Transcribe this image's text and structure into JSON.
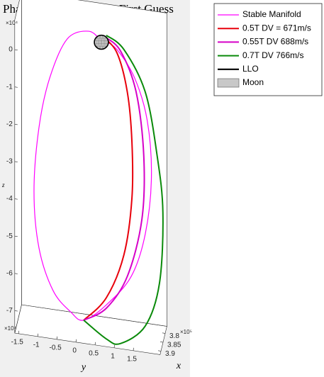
{
  "chart_data": {
    "type": "line3d",
    "title": "Phasing with Hohmann First Guess",
    "xlabel": "x",
    "ylabel": "y",
    "zlabel": "z",
    "x_exponent": "×10⁵",
    "y_exponent": "×10⁴",
    "z_exponent": "×10⁴",
    "xlim": [
      376000,
      392000
    ],
    "ylim": [
      -16000,
      22000
    ],
    "zlim": [
      -76000,
      8000
    ],
    "xticks": [
      {
        "value": 380000,
        "label": "3.8"
      },
      {
        "value": 385000,
        "label": "3.85"
      },
      {
        "value": 390000,
        "label": "3.9"
      }
    ],
    "yticks": [
      {
        "value": -15000,
        "label": "-1.5"
      },
      {
        "value": -10000,
        "label": "-1"
      },
      {
        "value": -5000,
        "label": "-0.5"
      },
      0,
      {
        "value": 5000,
        "label": "0.5"
      },
      {
        "value": 10000,
        "label": "1"
      },
      {
        "value": 15000,
        "label": "1.5"
      }
    ],
    "zticks": [
      {
        "value": -70000,
        "label": "-7"
      },
      {
        "value": -60000,
        "label": "-6"
      },
      {
        "value": -50000,
        "label": "-5"
      },
      {
        "value": -40000,
        "label": "-4"
      },
      {
        "value": -30000,
        "label": "-3"
      },
      {
        "value": -20000,
        "label": "-2"
      },
      {
        "value": -10000,
        "label": "-1"
      },
      0
    ],
    "series": [
      {
        "name": "Stable Manifold",
        "color": "#ff00ff",
        "width": 1.2,
        "x": [
          384500,
          384500,
          384500,
          384500,
          384500,
          384500,
          384500,
          384500,
          384500,
          384500,
          384500,
          384500,
          384500,
          384500,
          384500,
          384500,
          384500,
          384500
        ],
        "y": [
          5800,
          2500,
          -3100,
          -7700,
          -10500,
          -11800,
          -10500,
          -6800,
          -2200,
          1200,
          7100,
          13600,
          17300,
          18900,
          17800,
          14500,
          9900,
          6700
        ],
        "z": [
          2100,
          4200,
          1300,
          -9900,
          -23600,
          -40900,
          -55900,
          -66800,
          -71800,
          -73500,
          -68500,
          -59900,
          -47900,
          -32400,
          -17400,
          -6500,
          400,
          2200
        ]
      },
      {
        "name": "0.5T DV = 671m/s",
        "color": "#e8000b",
        "width": 2,
        "x": [
          384500,
          384500,
          384500,
          384500,
          384500,
          384500,
          384500,
          384500
        ],
        "y": [
          6200,
          9900,
          12600,
          13800,
          13800,
          11700,
          7100,
          1200
        ],
        "z": [
          3300,
          -500,
          -10600,
          -23700,
          -38900,
          -54400,
          -66600,
          -73500
        ]
      },
      {
        "name": "0.55T DV 688m/s",
        "color": "#d600c8",
        "width": 2,
        "x": [
          384500,
          384500,
          384500,
          384500,
          384500,
          384500,
          384500,
          384500
        ],
        "y": [
          6700,
          10800,
          14900,
          16900,
          16400,
          12600,
          7100,
          1200
        ],
        "z": [
          3300,
          200,
          -10200,
          -27000,
          -44200,
          -60000,
          -69400,
          -73500
        ]
      },
      {
        "name": "0.7T DV 766m/s",
        "color": "#0a8a0a",
        "width": 2,
        "x": [
          384500,
          384500,
          384500,
          384500,
          384500,
          384500,
          390000,
          390000,
          390000,
          384500
        ],
        "y": [
          7100,
          11700,
          17300,
          20400,
          21900,
          21000,
          17900,
          11400,
          7700,
          1200
        ],
        "z": [
          3800,
          700,
          -9900,
          -26500,
          -41500,
          -60600,
          -69900,
          -75600,
          -74900,
          -73500
        ]
      }
    ],
    "llo": {
      "name": "LLO",
      "color": "#000000",
      "center": [
        384400,
        5800,
        1700
      ],
      "radius": 1837
    },
    "moon": {
      "name": "Moon",
      "color": "#c8c8c8",
      "center": [
        384400,
        5800,
        1700
      ],
      "radius": 1737
    }
  }
}
